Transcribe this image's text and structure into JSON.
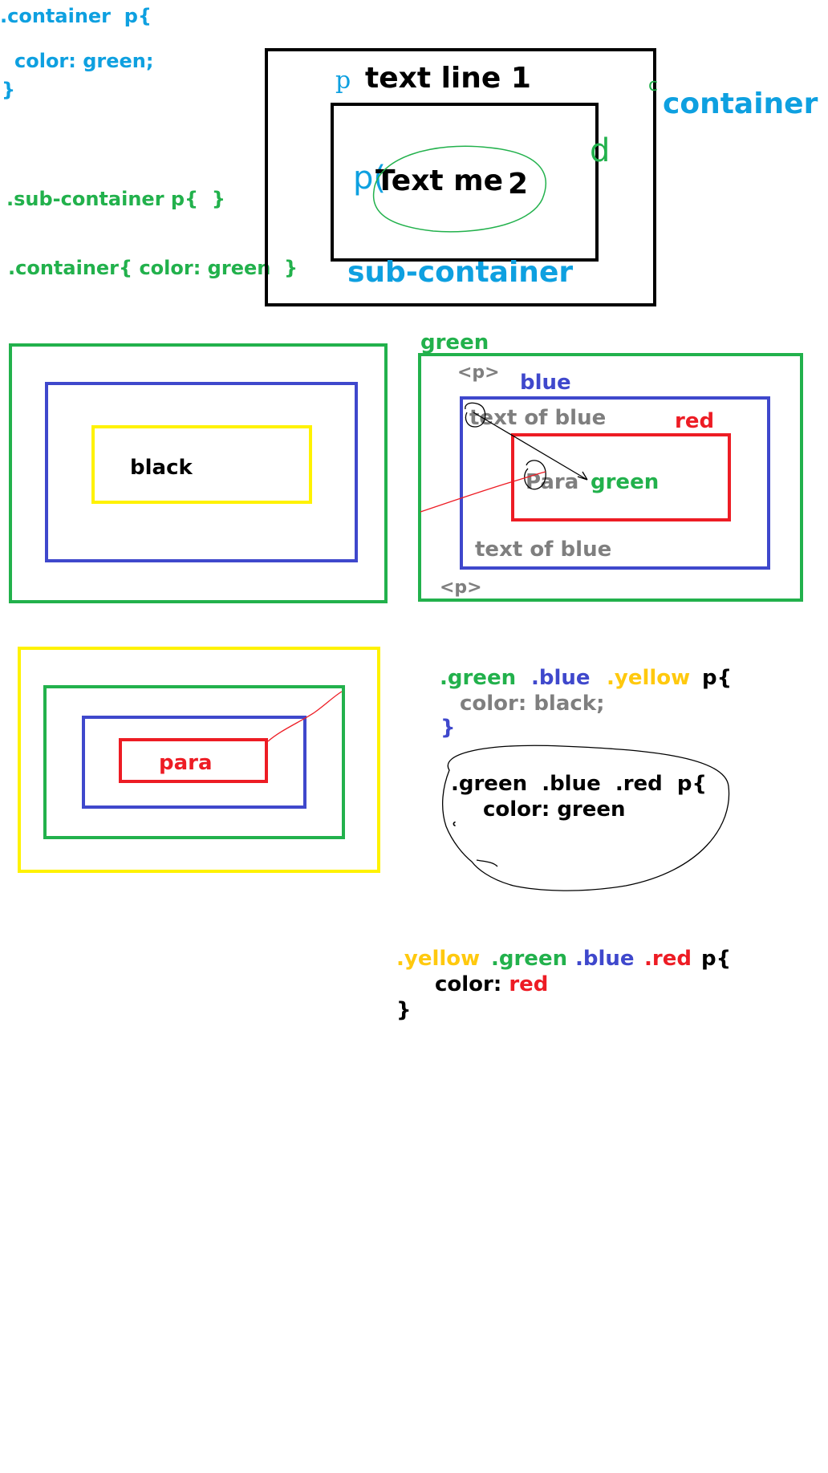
{
  "colors": {
    "cyan": "#0ea0e0",
    "green": "#22b14c",
    "blue": "#3f48cc",
    "red": "#ed1c24",
    "yellow": "#fff200",
    "code_yellow": "#ffc90e",
    "gray": "#7f7f7f",
    "black": "#000000"
  },
  "section1": {
    "css1": {
      "l1": ".container  p{",
      "l2": "color: green;",
      "l3": "}"
    },
    "css2": ".sub-container p{  }",
    "css3": ".container{ color: green  }",
    "container_label": "container",
    "sub_container_label": "sub-container",
    "line1": "text line 1",
    "line2_a": "Text me",
    "line2_b": "2",
    "p_mark_1": "p",
    "p_mark_2": "p(",
    "d_mark": "d",
    "c_mark": "c"
  },
  "section2": {
    "left": {
      "label": "black"
    },
    "right": {
      "green_label": "green",
      "p_open": "<p>",
      "blue_label": "blue",
      "red_label": "red",
      "text_blue_1": "text of blue",
      "para": "Para",
      "arrow_mark": "→",
      "green_text": "green",
      "text_blue_2": "text of blue",
      "p_close": "<p>"
    }
  },
  "section3": {
    "para": "para",
    "rule1": {
      "s1": ".green",
      "s2": ".blue",
      "s3": ".yellow",
      "s4": "p{",
      "body": "color: black;",
      "close": "}"
    },
    "rule2": {
      "l1": ".green  .blue  .red  p{",
      "l2": "color: green",
      "close": "ʿ"
    },
    "rule3": {
      "s1": ".yellow",
      "s2": ".green",
      "s3": ".blue",
      "s4": ".red",
      "s5": "p{",
      "body_a": "color: ",
      "body_b": "red",
      "close": "}"
    }
  }
}
